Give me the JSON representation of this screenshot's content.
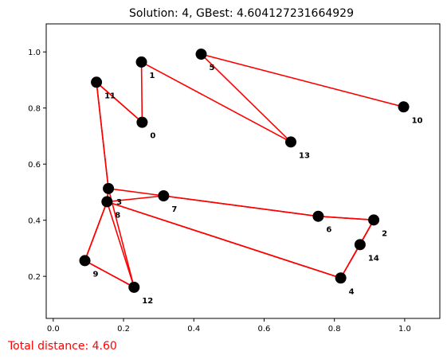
{
  "chart_data": {
    "type": "scatter",
    "title": "Solution: 4, GBest: 4.604127231664929",
    "xlabel": "",
    "ylabel": "",
    "xlim": [
      -0.02,
      1.1
    ],
    "ylim": [
      0.05,
      1.1
    ],
    "xticks": [
      0.0,
      0.2,
      0.4,
      0.6,
      0.8,
      1.0
    ],
    "xtick_labels": [
      "0.0",
      "0.2",
      "0.4",
      "0.6",
      "0.8",
      "1.0"
    ],
    "yticks": [
      0.2,
      0.4,
      0.6,
      0.8,
      1.0
    ],
    "ytick_labels": [
      "0.2",
      "0.4",
      "0.6",
      "0.8",
      "1.0"
    ],
    "grid": false,
    "nodes": [
      {
        "id": "0",
        "x": 0.253,
        "y": 0.749
      },
      {
        "id": "1",
        "x": 0.251,
        "y": 0.964
      },
      {
        "id": "2",
        "x": 0.912,
        "y": 0.401
      },
      {
        "id": "3",
        "x": 0.157,
        "y": 0.513
      },
      {
        "id": "4",
        "x": 0.818,
        "y": 0.194
      },
      {
        "id": "5",
        "x": 0.421,
        "y": 0.992
      },
      {
        "id": "6",
        "x": 0.754,
        "y": 0.414
      },
      {
        "id": "7",
        "x": 0.314,
        "y": 0.487
      },
      {
        "id": "8",
        "x": 0.153,
        "y": 0.466
      },
      {
        "id": "9",
        "x": 0.09,
        "y": 0.256
      },
      {
        "id": "10",
        "x": 0.997,
        "y": 0.804
      },
      {
        "id": "11",
        "x": 0.123,
        "y": 0.892
      },
      {
        "id": "12",
        "x": 0.23,
        "y": 0.161
      },
      {
        "id": "13",
        "x": 0.676,
        "y": 0.679
      },
      {
        "id": "14",
        "x": 0.873,
        "y": 0.313
      }
    ],
    "route": [
      "0",
      "11",
      "3",
      "12",
      "9",
      "8",
      "4",
      "14",
      "2",
      "6",
      "7",
      "3",
      "8",
      "9",
      "12",
      "8",
      "4",
      "2",
      "6",
      "7",
      "8",
      "3",
      "11",
      "0",
      "1",
      "13",
      "5",
      "10"
    ],
    "route_color": "#ff0000",
    "node_color": "#000000"
  },
  "footer_text": "Total distance: 4.60",
  "footer_color": "#ff0000"
}
